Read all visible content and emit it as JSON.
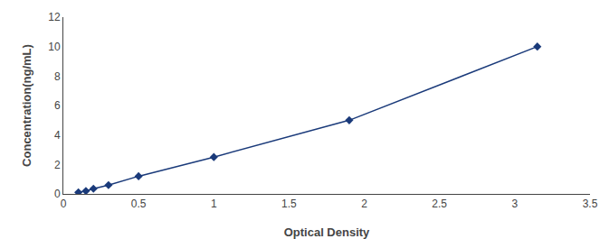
{
  "chart_data": {
    "type": "line",
    "x": [
      0.1,
      0.15,
      0.2,
      0.3,
      0.5,
      1.0,
      1.9,
      3.15
    ],
    "values": [
      0.1,
      0.2,
      0.35,
      0.6,
      1.2,
      2.5,
      5.0,
      10.0
    ],
    "color": "#1A3A7A",
    "marker": "diamond",
    "line_style": "solid",
    "xlabel": "Optical Density",
    "ylabel": "Concentration(ng/mL)",
    "xlim": [
      0,
      3.5
    ],
    "ylim": [
      0,
      12
    ],
    "xticks": [
      0,
      0.5,
      1,
      1.5,
      2,
      2.5,
      3,
      3.5
    ],
    "yticks": [
      0,
      2,
      4,
      6,
      8,
      10,
      12
    ],
    "grid": false
  }
}
